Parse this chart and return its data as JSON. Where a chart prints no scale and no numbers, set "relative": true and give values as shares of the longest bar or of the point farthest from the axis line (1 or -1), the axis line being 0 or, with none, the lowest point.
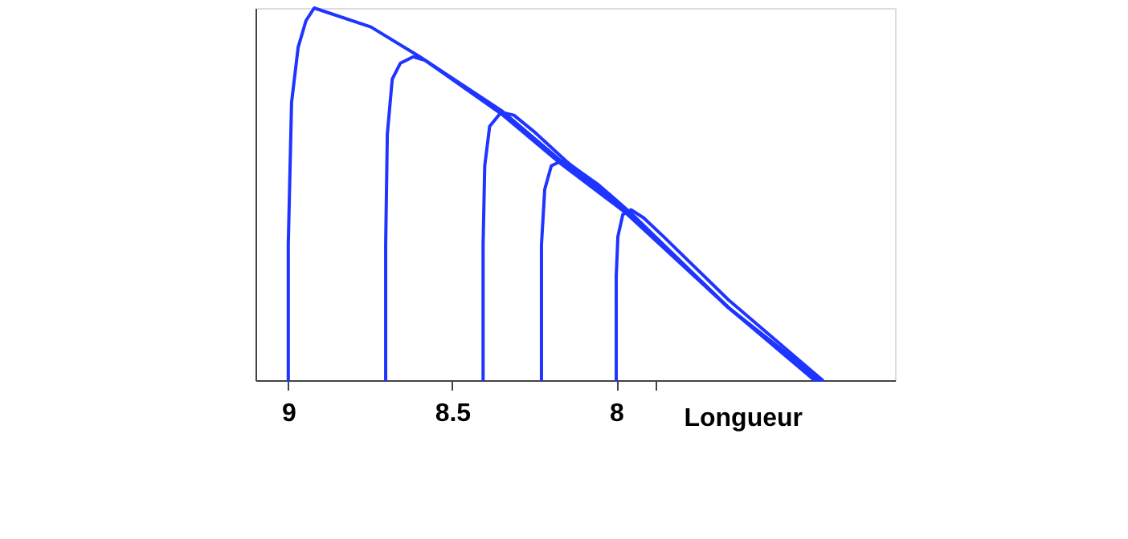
{
  "chart_data": {
    "type": "line",
    "relative": true,
    "xlabel": "Longueur",
    "xlim": [
      9.1,
      7.15
    ],
    "xticks": [
      9,
      8.5,
      8,
      {
        "value": 7.88,
        "label": null
      }
    ],
    "tick_labels": "x",
    "grid": false,
    "legend": false,
    "marker": "none",
    "line_style": "solid",
    "series": [
      {
        "color": "#1f35ff",
        "x": [
          9.0,
          9.0,
          8.99,
          8.97,
          8.946,
          8.921,
          8.748,
          8.599,
          8.351,
          8.168,
          7.97,
          7.658,
          7.376
        ],
        "values": [
          0,
          0.364,
          0.746,
          0.894,
          0.966,
          1,
          0.949,
          0.869,
          0.725,
          0.589,
          0.458,
          0.195,
          0
        ]
      },
      {
        "color": "#1f35ff",
        "x": [
          8.703,
          8.703,
          8.698,
          8.683,
          8.658,
          8.619,
          8.584,
          8.351,
          8.168,
          7.97,
          7.658,
          7.396
        ],
        "values": [
          0,
          0.364,
          0.661,
          0.809,
          0.852,
          0.869,
          0.86,
          0.716,
          0.581,
          0.449,
          0.195,
          0
        ]
      },
      {
        "color": "#1f35ff",
        "x": [
          8.406,
          8.406,
          8.401,
          8.386,
          8.351,
          8.312,
          8.252,
          8.153,
          7.97,
          7.658,
          7.386
        ],
        "values": [
          0,
          0.364,
          0.576,
          0.682,
          0.72,
          0.712,
          0.669,
          0.589,
          0.458,
          0.195,
          0
        ]
      },
      {
        "color": "#1f35ff",
        "x": [
          8.228,
          8.228,
          8.218,
          8.198,
          8.168,
          8.129,
          8.054,
          7.955,
          7.658,
          7.386
        ],
        "values": [
          0,
          0.364,
          0.513,
          0.576,
          0.589,
          0.572,
          0.525,
          0.449,
          0.195,
          0
        ]
      },
      {
        "color": "#1f35ff",
        "x": [
          8.0,
          8.0,
          7.995,
          7.98,
          7.955,
          7.916,
          7.856,
          7.658,
          7.371
        ],
        "values": [
          0,
          0.28,
          0.386,
          0.445,
          0.458,
          0.436,
          0.386,
          0.216,
          0
        ]
      }
    ]
  }
}
